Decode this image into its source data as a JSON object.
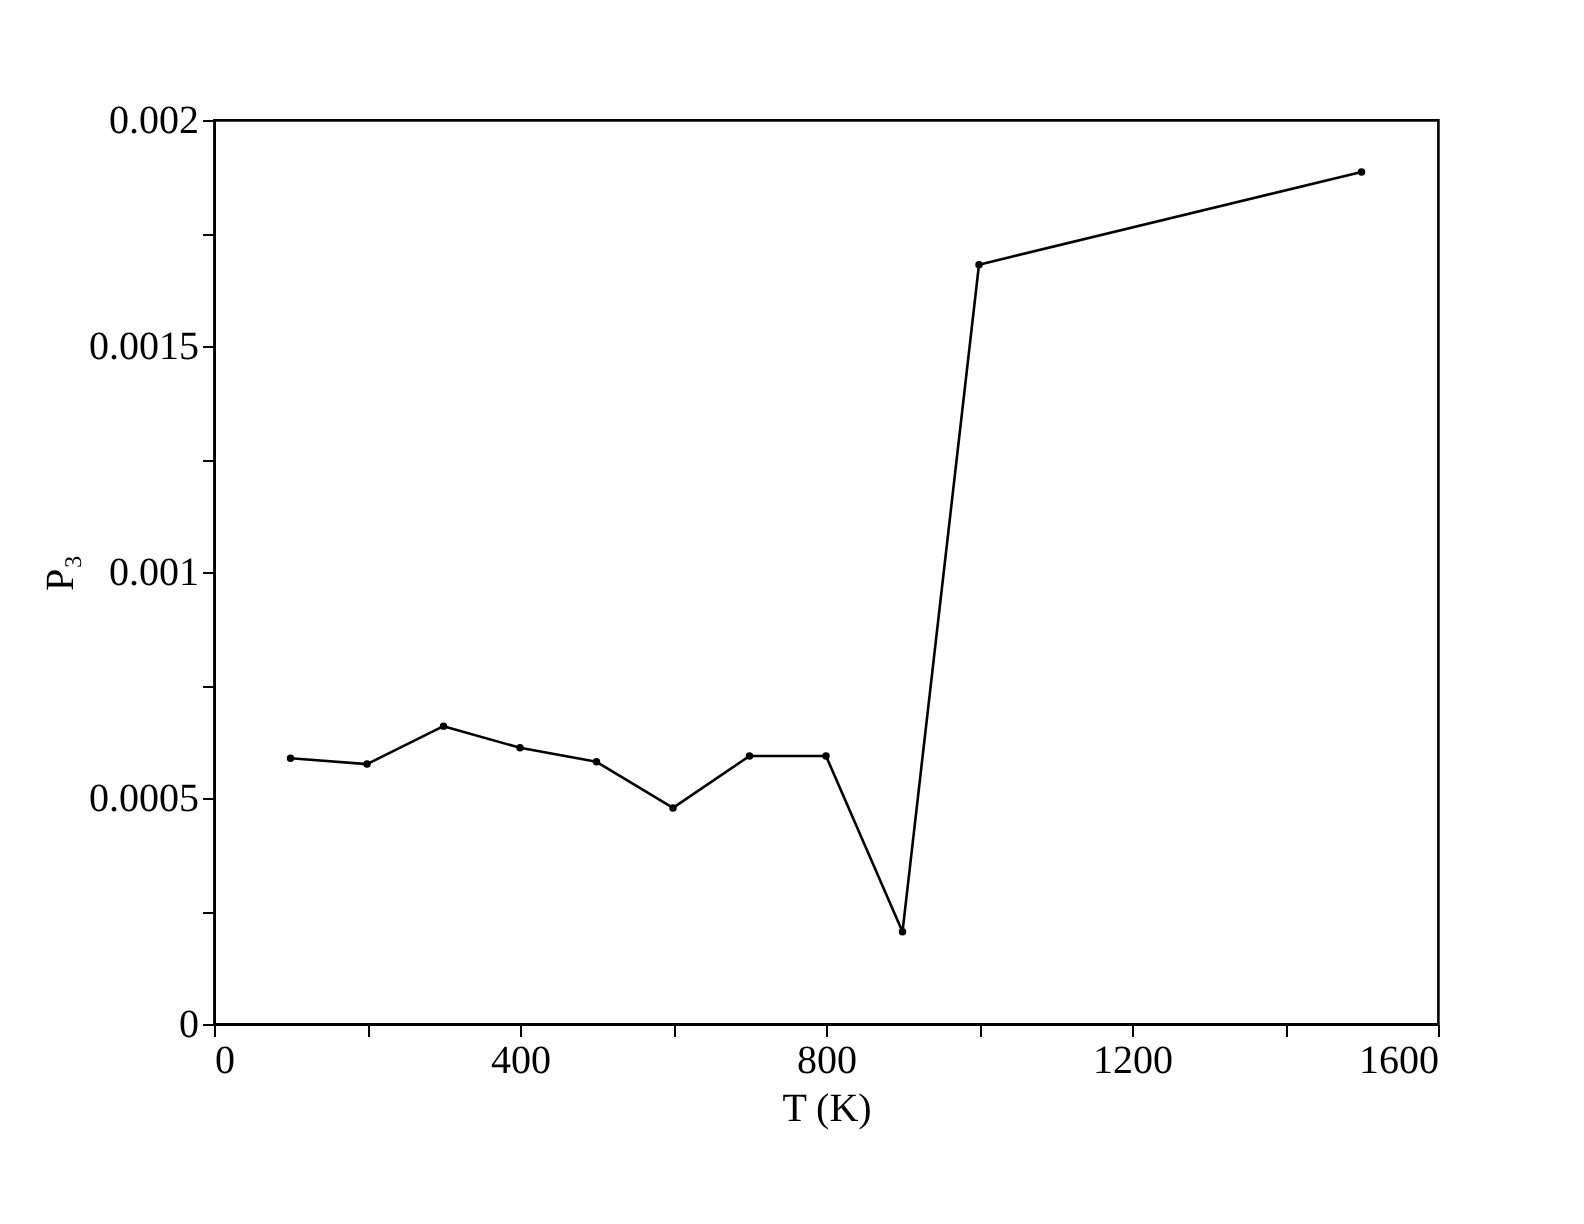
{
  "chart_data": {
    "type": "line",
    "xlabel": "T (K)",
    "ylabel": "P₃",
    "x": [
      100,
      200,
      300,
      400,
      500,
      600,
      700,
      800,
      900,
      1000,
      1500
    ],
    "series": [
      {
        "color": "#000000",
        "values": [
          0.000588,
          0.000575,
          0.000659,
          0.000611,
          0.00058,
          0.000478,
          0.000593,
          0.000593,
          0.000204,
          0.00168,
          0.001885
        ]
      }
    ],
    "xlim": [
      0,
      1600
    ],
    "xticks": [
      0,
      {
        "value": 200,
        "label": null
      },
      400,
      {
        "value": 600,
        "label": null
      },
      800,
      {
        "value": 1000,
        "label": null
      },
      1200,
      {
        "value": 1400,
        "label": null
      },
      1600
    ],
    "ylim": [
      0,
      0.002
    ],
    "yticks": [
      0,
      {
        "value": 0.00025,
        "label": null
      },
      0.0005,
      {
        "value": 0.00075,
        "label": null
      },
      0.001,
      {
        "value": 0.00125,
        "label": null
      },
      0.0015,
      {
        "value": 0.00175,
        "label": null
      },
      0.002
    ],
    "marker": "circle",
    "line_style": "solid",
    "grid": false
  }
}
